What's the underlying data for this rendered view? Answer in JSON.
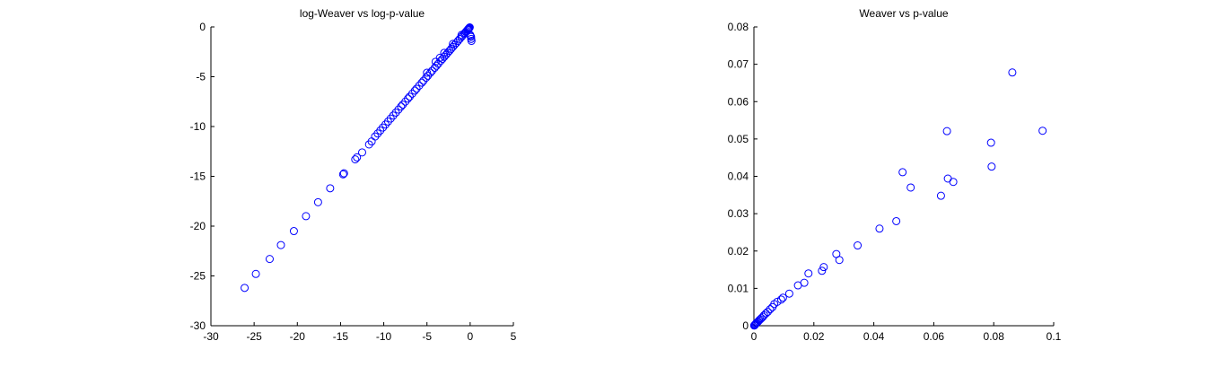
{
  "chart_data": [
    {
      "type": "scatter",
      "title": "log-Weaver vs log-p-value",
      "xlabel": "",
      "ylabel": "",
      "xlim": [
        -30,
        5
      ],
      "ylim": [
        -30,
        0
      ],
      "xticks": [
        -30,
        -25,
        -20,
        -15,
        -10,
        -5,
        0,
        5
      ],
      "yticks": [
        -30,
        -25,
        -20,
        -15,
        -10,
        -5,
        0
      ],
      "xtick_labels": [
        "-30",
        "-25",
        "-20",
        "-15",
        "-10",
        "-5",
        "0",
        "5"
      ],
      "ytick_labels": [
        "-30",
        "-25",
        "-20",
        "-15",
        "-10",
        "-5",
        "0"
      ],
      "marker": "circle",
      "marker_color": "#0000ff",
      "grid": false,
      "series": [
        {
          "x": [
            -26.1,
            -24.8,
            -23.2,
            -21.9,
            -20.4,
            -19.0,
            -17.6,
            -16.2,
            -14.7,
            -14.6,
            -13.3,
            -13.1,
            -12.5,
            -11.7,
            -11.4,
            -11.0,
            -10.7,
            -10.4,
            -10.1,
            -9.8,
            -9.5,
            -9.2,
            -8.9,
            -8.6,
            -8.3,
            -8.0,
            -7.8,
            -7.5,
            -7.2,
            -7.0,
            -6.7,
            -6.4,
            -6.2,
            -5.9,
            -5.6,
            -5.4,
            -5.1,
            -4.9,
            -4.6,
            -4.4,
            -4.1,
            -3.9,
            -3.7,
            -3.4,
            -3.2,
            -3.0,
            -2.8,
            -2.6,
            -2.4,
            -2.2,
            -2.0,
            -1.8,
            -1.6,
            -1.4,
            -1.2,
            -1.0,
            -0.9,
            -0.7,
            -0.6,
            -0.5,
            -0.4,
            -0.3,
            -0.25,
            -0.2,
            -0.15,
            -0.1,
            -0.05,
            0.0,
            0.05,
            0.1,
            0.12,
            0.15,
            -4.0,
            -3.0,
            -2.0,
            -1.0,
            -5.0,
            -3.5
          ],
          "y": [
            -26.2,
            -24.8,
            -23.3,
            -21.9,
            -20.5,
            -19.0,
            -17.6,
            -16.2,
            -14.8,
            -14.7,
            -13.3,
            -13.1,
            -12.6,
            -11.8,
            -11.5,
            -11.0,
            -10.7,
            -10.4,
            -10.1,
            -9.8,
            -9.5,
            -9.2,
            -8.9,
            -8.6,
            -8.3,
            -8.0,
            -7.8,
            -7.5,
            -7.2,
            -7.0,
            -6.7,
            -6.4,
            -6.2,
            -5.9,
            -5.6,
            -5.4,
            -5.1,
            -4.9,
            -4.6,
            -4.4,
            -4.1,
            -3.9,
            -3.7,
            -3.4,
            -3.2,
            -3.0,
            -2.8,
            -2.6,
            -2.4,
            -2.2,
            -2.0,
            -1.8,
            -1.6,
            -1.4,
            -1.2,
            -1.0,
            -0.9,
            -0.7,
            -0.6,
            -0.5,
            -0.4,
            -0.3,
            -0.25,
            -0.2,
            -0.15,
            -0.1,
            -0.05,
            -0.8,
            -0.9,
            -1.0,
            -1.2,
            -1.4,
            -3.5,
            -2.6,
            -1.7,
            -0.8,
            -4.6,
            -3.1
          ]
        }
      ]
    },
    {
      "type": "scatter",
      "title": "Weaver vs p-value",
      "xlabel": "",
      "ylabel": "",
      "xlim": [
        0,
        0.1
      ],
      "ylim": [
        0,
        0.08
      ],
      "xticks": [
        0,
        0.02,
        0.04,
        0.06,
        0.08,
        0.1
      ],
      "yticks": [
        0,
        0.01,
        0.02,
        0.03,
        0.04,
        0.05,
        0.06,
        0.07,
        0.08
      ],
      "xtick_labels": [
        "0",
        "0.02",
        "0.04",
        "0.06",
        "0.08",
        "0.1"
      ],
      "ytick_labels": [
        "0",
        "0.01",
        "0.02",
        "0.03",
        "0.04",
        "0.05",
        "0.06",
        "0.07",
        "0.08"
      ],
      "marker": "circle",
      "marker_color": "#0000ff",
      "grid": false,
      "series": [
        {
          "x": [
            0.0862,
            0.0963,
            0.0644,
            0.0791,
            0.0793,
            0.0496,
            0.0647,
            0.0665,
            0.0523,
            0.0624,
            0.0475,
            0.0419,
            0.0346,
            0.0275,
            0.0285,
            0.0233,
            0.0227,
            0.0182,
            0.0168,
            0.0147,
            0.0118,
            0.0097,
            0.0091,
            0.0078,
            0.0068,
            0.0062,
            0.0054,
            0.0046,
            0.004,
            0.0034,
            0.003,
            0.0025,
            0.0021,
            0.0017,
            0.0014,
            0.0011,
            0.0008,
            0.0006,
            0.0004,
            0.0003,
            0.0002,
            0.0001
          ],
          "y": [
            0.0678,
            0.0522,
            0.0521,
            0.049,
            0.0426,
            0.0411,
            0.0394,
            0.0385,
            0.037,
            0.0348,
            0.028,
            0.026,
            0.0215,
            0.0192,
            0.0176,
            0.0157,
            0.0147,
            0.014,
            0.0115,
            0.0108,
            0.0086,
            0.0075,
            0.007,
            0.0064,
            0.0058,
            0.005,
            0.0044,
            0.0037,
            0.0033,
            0.0028,
            0.0024,
            0.002,
            0.0017,
            0.0014,
            0.0011,
            0.0009,
            0.0007,
            0.0005,
            0.0003,
            0.0002,
            0.0001,
            5e-05
          ]
        }
      ]
    }
  ]
}
